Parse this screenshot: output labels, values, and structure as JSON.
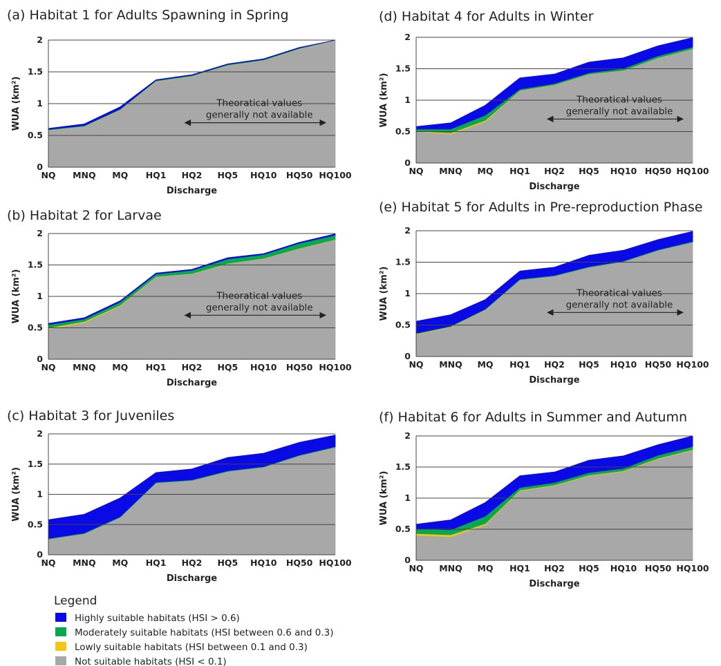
{
  "chart_data": [
    {
      "type": "area",
      "stacked": true,
      "title": "(a) Habitat 1 for Adults Spawning in Spring",
      "xlabel": "Discharge",
      "ylabel": "WUA (km²)",
      "categories": [
        "NQ",
        "MNQ",
        "MQ",
        "HQ1",
        "HQ2",
        "HQ5",
        "HQ10",
        "HQ50",
        "HQ100"
      ],
      "ylim": [
        0,
        2
      ],
      "yticks": [
        "0",
        "0.5",
        "1",
        "1.5",
        "2"
      ],
      "annotation": {
        "line1": "Theoratical values",
        "line2": "generally not available",
        "from_category": "HQ2",
        "to_category": "HQ100"
      },
      "series": [
        {
          "key": "not",
          "values": [
            0.58,
            0.64,
            0.9,
            1.35,
            1.43,
            1.6,
            1.68,
            1.86,
            2.0
          ]
        },
        {
          "key": "low",
          "values": [
            0.005,
            0.005,
            0.005,
            0.005,
            0.005,
            0.005,
            0.005,
            0.005,
            0.0
          ]
        },
        {
          "key": "mod",
          "values": [
            0.01,
            0.01,
            0.01,
            0.01,
            0.01,
            0.01,
            0.01,
            0.01,
            0.0
          ]
        },
        {
          "key": "high",
          "values": [
            0.015,
            0.025,
            0.035,
            0.01,
            0.01,
            0.01,
            0.01,
            0.01,
            0.0
          ]
        }
      ]
    },
    {
      "type": "area",
      "stacked": true,
      "title": "(b) Habitat 2 for Larvae",
      "xlabel": "Discharge",
      "ylabel": "WUA (km²)",
      "categories": [
        "NQ",
        "MNQ",
        "MQ",
        "HQ1",
        "HQ2",
        "HQ5",
        "HQ10",
        "HQ50",
        "HQ100"
      ],
      "ylim": [
        0,
        2
      ],
      "yticks": [
        "0",
        "0.5",
        "1",
        "1.5",
        "2"
      ],
      "annotation": {
        "line1": "Theoratical values",
        "line2": "generally not available",
        "from_category": "HQ2",
        "to_category": "HQ100"
      },
      "series": [
        {
          "key": "not",
          "values": [
            0.48,
            0.58,
            0.85,
            1.31,
            1.36,
            1.52,
            1.6,
            1.76,
            1.9
          ]
        },
        {
          "key": "low",
          "values": [
            0.02,
            0.02,
            0.01,
            0.005,
            0.005,
            0.005,
            0.005,
            0.005,
            0.005
          ]
        },
        {
          "key": "mod",
          "values": [
            0.05,
            0.04,
            0.05,
            0.04,
            0.05,
            0.07,
            0.06,
            0.08,
            0.07
          ]
        },
        {
          "key": "high",
          "values": [
            0.02,
            0.02,
            0.02,
            0.015,
            0.015,
            0.02,
            0.015,
            0.015,
            0.02
          ]
        }
      ]
    },
    {
      "type": "area",
      "stacked": true,
      "title": "(c) Habitat 3 for Juveniles",
      "xlabel": "Discharge",
      "ylabel": "WUA (km²)",
      "categories": [
        "NQ",
        "MNQ",
        "MQ",
        "HQ1",
        "HQ2",
        "HQ5",
        "HQ10",
        "HQ50",
        "HQ100"
      ],
      "ylim": [
        0,
        2
      ],
      "yticks": [
        "0",
        "0.5",
        "1",
        "1.5",
        "2"
      ],
      "series": [
        {
          "key": "not",
          "values": [
            0.26,
            0.35,
            0.62,
            1.19,
            1.23,
            1.38,
            1.45,
            1.64,
            1.78
          ]
        },
        {
          "key": "low",
          "values": [
            0.0,
            0.0,
            0.0,
            0.0,
            0.0,
            0.0,
            0.0,
            0.0,
            0.0
          ]
        },
        {
          "key": "mod",
          "values": [
            0.01,
            0.01,
            0.01,
            0.01,
            0.01,
            0.01,
            0.01,
            0.01,
            0.01
          ]
        },
        {
          "key": "high",
          "values": [
            0.31,
            0.31,
            0.31,
            0.16,
            0.18,
            0.22,
            0.22,
            0.21,
            0.19
          ]
        }
      ]
    },
    {
      "type": "area",
      "stacked": true,
      "title": "(d) Habitat 4 for Adults in Winter",
      "xlabel": "Discharge",
      "ylabel": "WUA (km²)",
      "categories": [
        "NQ",
        "MNQ",
        "MQ",
        "HQ1",
        "HQ2",
        "HQ5",
        "HQ10",
        "HQ50",
        "HQ100"
      ],
      "ylim": [
        0,
        2
      ],
      "yticks": [
        "0",
        "0.5",
        "1",
        "1.5",
        "2"
      ],
      "annotation": {
        "line1": "Theoratical values",
        "line2": "generally not available",
        "from_category": "HQ2",
        "to_category": "HQ100"
      },
      "series": [
        {
          "key": "not",
          "values": [
            0.5,
            0.46,
            0.66,
            1.15,
            1.24,
            1.41,
            1.47,
            1.67,
            1.81
          ]
        },
        {
          "key": "low",
          "values": [
            0.01,
            0.02,
            0.02,
            0.005,
            0.005,
            0.005,
            0.005,
            0.005,
            0.005
          ]
        },
        {
          "key": "mod",
          "values": [
            0.03,
            0.06,
            0.08,
            0.02,
            0.02,
            0.02,
            0.03,
            0.03,
            0.03
          ]
        },
        {
          "key": "high",
          "values": [
            0.04,
            0.1,
            0.16,
            0.18,
            0.15,
            0.17,
            0.17,
            0.16,
            0.15
          ]
        }
      ]
    },
    {
      "type": "area",
      "stacked": true,
      "title": "(e) Habitat 5 for Adults in Pre-reproduction Phase",
      "xlabel": "Discharge",
      "ylabel": "WUA (km²)",
      "categories": [
        "NQ",
        "MNQ",
        "MQ",
        "HQ1",
        "HQ2",
        "HQ5",
        "HQ10",
        "HQ50",
        "HQ100"
      ],
      "ylim": [
        0,
        2
      ],
      "yticks": [
        "0",
        "0.5",
        "1",
        "1.5",
        "2"
      ],
      "annotation": {
        "line1": "Theoratical values",
        "line2": "generally not available",
        "from_category": "HQ2",
        "to_category": "HQ100"
      },
      "series": [
        {
          "key": "not",
          "values": [
            0.35,
            0.47,
            0.74,
            1.22,
            1.28,
            1.42,
            1.51,
            1.69,
            1.82
          ]
        },
        {
          "key": "low",
          "values": [
            0.01,
            0.005,
            0.005,
            0.0,
            0.0,
            0.0,
            0.0,
            0.0,
            0.0
          ]
        },
        {
          "key": "mod",
          "values": [
            0.01,
            0.01,
            0.01,
            0.01,
            0.01,
            0.01,
            0.01,
            0.01,
            0.01
          ]
        },
        {
          "key": "high",
          "values": [
            0.19,
            0.18,
            0.15,
            0.13,
            0.13,
            0.18,
            0.17,
            0.16,
            0.16
          ]
        }
      ]
    },
    {
      "type": "area",
      "stacked": true,
      "title": "(f) Habitat 6 for Adults in Summer and Autumn",
      "xlabel": "Discharge",
      "ylabel": "WUA (km²)",
      "categories": [
        "NQ",
        "MNQ",
        "MQ",
        "HQ1",
        "HQ2",
        "HQ5",
        "HQ10",
        "HQ50",
        "HQ100"
      ],
      "ylim": [
        0,
        2
      ],
      "yticks": [
        "0",
        "0.5",
        "1",
        "1.5",
        "2"
      ],
      "series": [
        {
          "key": "not",
          "values": [
            0.4,
            0.38,
            0.57,
            1.12,
            1.2,
            1.36,
            1.43,
            1.63,
            1.77
          ]
        },
        {
          "key": "low",
          "values": [
            0.03,
            0.03,
            0.02,
            0.01,
            0.01,
            0.01,
            0.01,
            0.01,
            0.01
          ]
        },
        {
          "key": "mod",
          "values": [
            0.08,
            0.08,
            0.12,
            0.04,
            0.04,
            0.04,
            0.04,
            0.05,
            0.05
          ]
        },
        {
          "key": "high",
          "values": [
            0.07,
            0.16,
            0.22,
            0.19,
            0.17,
            0.2,
            0.2,
            0.17,
            0.17
          ]
        }
      ]
    }
  ],
  "legend": {
    "title": "Legend",
    "items": [
      {
        "key": "high",
        "label": "Highly suitable habitats (HSI > 0.6)",
        "color": "#0a0ae6"
      },
      {
        "key": "mod",
        "label": "Moderately suitable habitats (HSI between 0.6 and 0.3)",
        "color": "#0aa84e"
      },
      {
        "key": "low",
        "label": "Lowly suitable habitats (HSI between 0.1 and 0.3)",
        "color": "#f5c518"
      },
      {
        "key": "not",
        "label": "Not suitable habitats (HSI < 0.1)",
        "color": "#a8a8a8"
      }
    ]
  }
}
